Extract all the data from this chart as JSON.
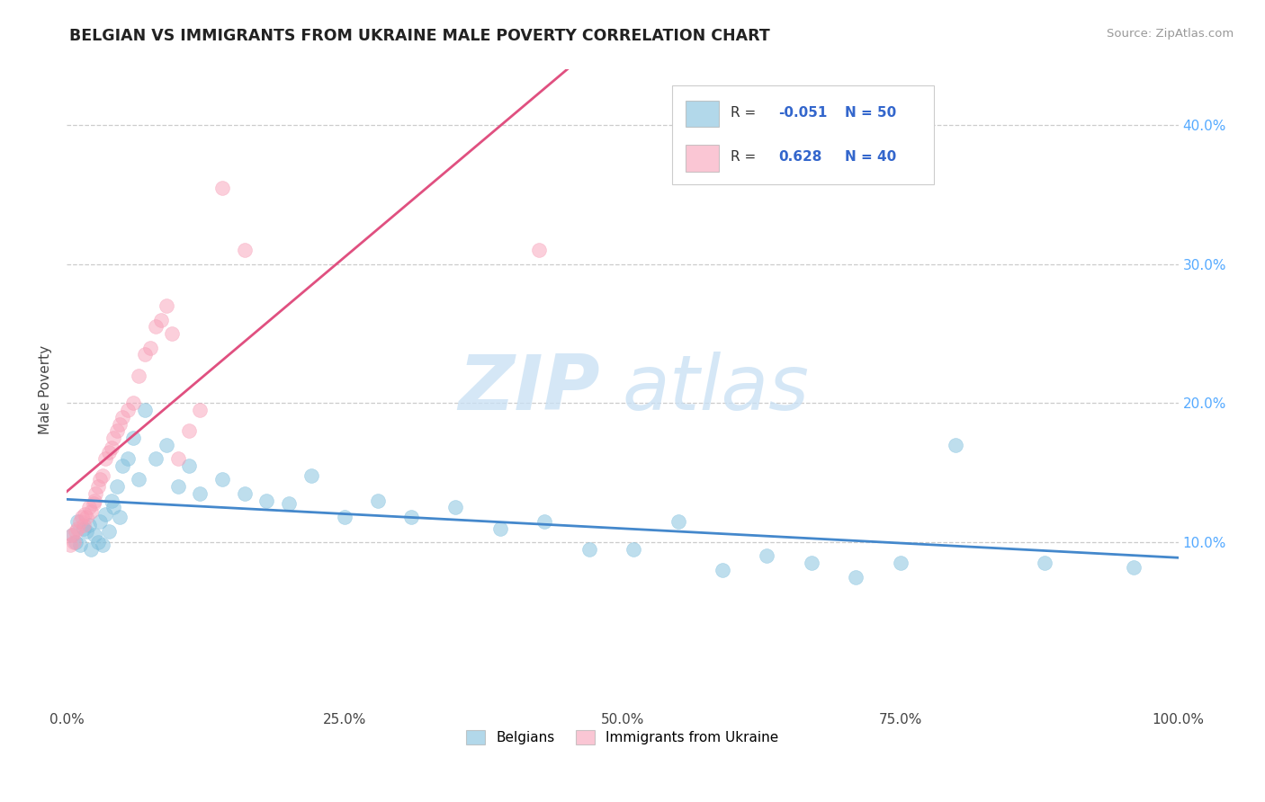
{
  "title": "BELGIAN VS IMMIGRANTS FROM UKRAINE MALE POVERTY CORRELATION CHART",
  "source": "Source: ZipAtlas.com",
  "ylabel": "Male Poverty",
  "watermark_zip": "ZIP",
  "watermark_atlas": "atlas",
  "legend_r1_label": "R = -0.051",
  "legend_n1_label": "N = 50",
  "legend_r2_label": "R =  0.628",
  "legend_n2_label": "N = 40",
  "xlim": [
    0.0,
    1.0
  ],
  "ylim": [
    -0.02,
    0.44
  ],
  "xticks": [
    0.0,
    0.25,
    0.5,
    0.75,
    1.0
  ],
  "yticks": [
    0.1,
    0.2,
    0.3,
    0.4
  ],
  "xticklabels": [
    "0.0%",
    "25.0%",
    "50.0%",
    "75.0%",
    "100.0%"
  ],
  "yticklabels": [
    "10.0%",
    "20.0%",
    "30.0%",
    "40.0%"
  ],
  "grid_color": "#cccccc",
  "belgian_color": "#7fbfdd",
  "ukraine_color": "#f8a0b8",
  "belgian_line_color": "#4488cc",
  "ukraine_line_color": "#e05080",
  "background_color": "#ffffff",
  "belgians_label": "Belgians",
  "ukraine_label": "Immigrants from Ukraine",
  "bel_x": [
    0.005,
    0.008,
    0.01,
    0.012,
    0.015,
    0.018,
    0.02,
    0.022,
    0.025,
    0.028,
    0.03,
    0.032,
    0.035,
    0.038,
    0.04,
    0.042,
    0.045,
    0.048,
    0.05,
    0.055,
    0.06,
    0.065,
    0.07,
    0.08,
    0.09,
    0.1,
    0.11,
    0.12,
    0.14,
    0.16,
    0.18,
    0.2,
    0.22,
    0.25,
    0.28,
    0.31,
    0.35,
    0.39,
    0.43,
    0.47,
    0.51,
    0.55,
    0.59,
    0.63,
    0.67,
    0.71,
    0.75,
    0.8,
    0.88,
    0.96
  ],
  "bel_y": [
    0.105,
    0.1,
    0.115,
    0.098,
    0.11,
    0.108,
    0.112,
    0.095,
    0.105,
    0.1,
    0.115,
    0.098,
    0.12,
    0.108,
    0.13,
    0.125,
    0.14,
    0.118,
    0.155,
    0.16,
    0.175,
    0.145,
    0.195,
    0.16,
    0.17,
    0.14,
    0.155,
    0.135,
    0.145,
    0.135,
    0.13,
    0.128,
    0.148,
    0.118,
    0.13,
    0.118,
    0.125,
    0.11,
    0.115,
    0.095,
    0.095,
    0.115,
    0.08,
    0.09,
    0.085,
    0.075,
    0.085,
    0.17,
    0.085,
    0.082
  ],
  "ukr_x": [
    0.003,
    0.005,
    0.006,
    0.008,
    0.01,
    0.012,
    0.014,
    0.015,
    0.016,
    0.018,
    0.02,
    0.022,
    0.024,
    0.025,
    0.026,
    0.028,
    0.03,
    0.032,
    0.035,
    0.038,
    0.04,
    0.042,
    0.045,
    0.048,
    0.05,
    0.055,
    0.06,
    0.065,
    0.07,
    0.075,
    0.08,
    0.085,
    0.09,
    0.095,
    0.1,
    0.11,
    0.12,
    0.14,
    0.16,
    0.425
  ],
  "ukr_y": [
    0.098,
    0.105,
    0.1,
    0.108,
    0.11,
    0.115,
    0.118,
    0.112,
    0.12,
    0.118,
    0.125,
    0.122,
    0.128,
    0.13,
    0.135,
    0.14,
    0.145,
    0.148,
    0.16,
    0.165,
    0.168,
    0.175,
    0.18,
    0.185,
    0.19,
    0.195,
    0.2,
    0.22,
    0.235,
    0.24,
    0.255,
    0.26,
    0.27,
    0.25,
    0.16,
    0.18,
    0.195,
    0.355,
    0.31,
    0.31
  ]
}
